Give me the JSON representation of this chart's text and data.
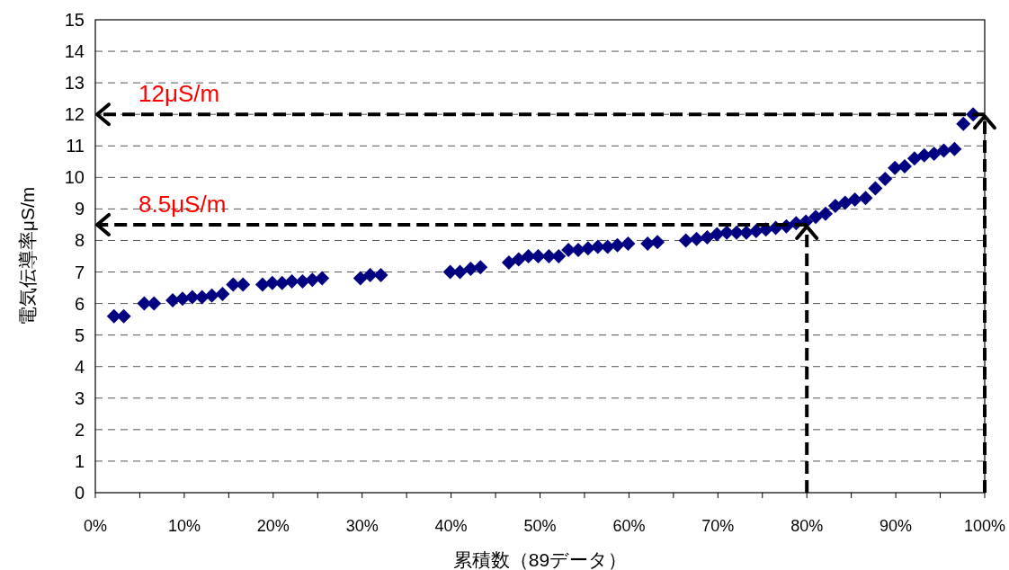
{
  "chart_data": {
    "type": "scatter",
    "xlabel": "累積数（89データ）",
    "ylabel": "電気伝導率μS/m",
    "xlim": [
      0,
      100
    ],
    "ylim": [
      0,
      15
    ],
    "xticks": [
      {
        "value": 0,
        "label": "0%"
      },
      {
        "value": 5,
        "label": null
      },
      {
        "value": 10,
        "label": "10%"
      },
      {
        "value": 15,
        "label": null
      },
      {
        "value": 20,
        "label": "20%"
      },
      {
        "value": 25,
        "label": null
      },
      {
        "value": 30,
        "label": "30%"
      },
      {
        "value": 35,
        "label": null
      },
      {
        "value": 40,
        "label": "40%"
      },
      {
        "value": 45,
        "label": null
      },
      {
        "value": 50,
        "label": "50%"
      },
      {
        "value": 55,
        "label": null
      },
      {
        "value": 60,
        "label": "60%"
      },
      {
        "value": 65,
        "label": null
      },
      {
        "value": 70,
        "label": "70%"
      },
      {
        "value": 75,
        "label": null
      },
      {
        "value": 80,
        "label": "80%"
      },
      {
        "value": 85,
        "label": null
      },
      {
        "value": 90,
        "label": "90%"
      },
      {
        "value": 95,
        "label": null
      },
      {
        "value": 100,
        "label": "100%"
      }
    ],
    "yticks": [
      0,
      1,
      2,
      3,
      4,
      5,
      6,
      7,
      8,
      9,
      10,
      11,
      12,
      13,
      14,
      15
    ],
    "grid": "y",
    "marker": "diamond",
    "series": [
      {
        "color": "#000080",
        "x": [
          2.1,
          3.2,
          5.5,
          6.6,
          8.7,
          9.8,
          10.9,
          12.0,
          13.1,
          14.3,
          15.5,
          16.6,
          18.8,
          19.9,
          21.0,
          22.1,
          23.3,
          24.4,
          25.5,
          29.8,
          30.9,
          32.1,
          39.9,
          41.0,
          42.2,
          43.3,
          46.5,
          47.6,
          48.7,
          49.8,
          51.0,
          52.1,
          53.2,
          54.3,
          55.4,
          56.5,
          57.6,
          58.7,
          59.9,
          62.1,
          63.2,
          66.4,
          67.6,
          68.8,
          69.9,
          71.0,
          72.1,
          73.2,
          74.3,
          75.4,
          76.5,
          77.7,
          78.8,
          79.9,
          81.0,
          82.1,
          83.2,
          84.3,
          85.4,
          86.6,
          87.7,
          88.8,
          89.9,
          91.0,
          92.1,
          93.2,
          94.3,
          95.4,
          96.6,
          97.6,
          98.7
        ],
        "values": [
          5.6,
          5.6,
          6.0,
          6.0,
          6.1,
          6.15,
          6.2,
          6.2,
          6.25,
          6.3,
          6.6,
          6.6,
          6.6,
          6.65,
          6.65,
          6.7,
          6.7,
          6.75,
          6.8,
          6.8,
          6.9,
          6.9,
          7.0,
          7.0,
          7.1,
          7.15,
          7.3,
          7.4,
          7.5,
          7.5,
          7.5,
          7.5,
          7.7,
          7.7,
          7.75,
          7.8,
          7.8,
          7.85,
          7.9,
          7.9,
          7.95,
          8.0,
          8.05,
          8.1,
          8.2,
          8.25,
          8.25,
          8.25,
          8.3,
          8.35,
          8.4,
          8.45,
          8.55,
          8.6,
          8.75,
          8.85,
          9.1,
          9.2,
          9.3,
          9.35,
          9.65,
          9.95,
          10.3,
          10.35,
          10.6,
          10.7,
          10.75,
          10.85,
          10.9,
          11.7,
          12.0
        ]
      }
    ],
    "ref_lines": [
      {
        "axis": "y",
        "value": 12,
        "label": "12μS/m",
        "color": "#000000",
        "line_style": "dashed"
      },
      {
        "axis": "x",
        "value": 100,
        "color": "#000000",
        "line_style": "dashed"
      },
      {
        "axis": "y",
        "value": 8.5,
        "label": "8.5μS/m",
        "color": "#000000",
        "line_style": "dashed"
      },
      {
        "axis": "x",
        "value": 80,
        "color": "#000000",
        "line_style": "dashed"
      }
    ]
  }
}
